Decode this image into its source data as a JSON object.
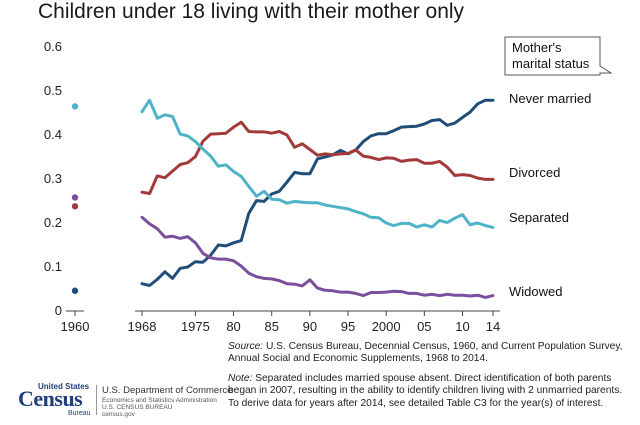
{
  "chart_data": {
    "type": "line",
    "title": "Children under 18 living with their mother only",
    "legend_title": "Mother's marital status",
    "ylim": [
      0,
      0.6
    ],
    "y_ticks": [
      "0",
      "0.1",
      "0.2",
      "0.3",
      "0.4",
      "0.5",
      "0.6"
    ],
    "x_tick_labels": [
      {
        "x": 1960,
        "label": "1960"
      },
      {
        "x": 1968,
        "label": "1968"
      },
      {
        "x": 1975,
        "label": "1975"
      },
      {
        "x": 1980,
        "label": "80"
      },
      {
        "x": 1985,
        "label": "85"
      },
      {
        "x": 1990,
        "label": "90"
      },
      {
        "x": 1995,
        "label": "95"
      },
      {
        "x": 2000,
        "label": "2000"
      },
      {
        "x": 2005,
        "label": "05"
      },
      {
        "x": 2010,
        "label": "10"
      },
      {
        "x": 2014,
        "label": "14"
      }
    ],
    "x_axis_gap": [
      1960,
      1968
    ],
    "grid": false,
    "legend_placement": "top-right",
    "series": [
      {
        "name": "Never married",
        "color": "#1f4e79",
        "point_1960": 0.046,
        "x": [
          1968,
          1969,
          1970,
          1971,
          1972,
          1973,
          1974,
          1975,
          1976,
          1977,
          1978,
          1979,
          1980,
          1981,
          1982,
          1983,
          1984,
          1985,
          1986,
          1987,
          1988,
          1989,
          1990,
          1991,
          1992,
          1993,
          1994,
          1995,
          1996,
          1997,
          1998,
          1999,
          2000,
          2001,
          2002,
          2003,
          2004,
          2005,
          2006,
          2007,
          2008,
          2009,
          2010,
          2011,
          2012,
          2013,
          2014
        ],
        "values": [
          0.062,
          0.058,
          0.072,
          0.089,
          0.074,
          0.097,
          0.1,
          0.112,
          0.111,
          0.127,
          0.15,
          0.148,
          0.155,
          0.16,
          0.222,
          0.251,
          0.249,
          0.266,
          0.272,
          0.293,
          0.315,
          0.312,
          0.312,
          0.346,
          0.35,
          0.355,
          0.365,
          0.357,
          0.366,
          0.385,
          0.398,
          0.403,
          0.403,
          0.41,
          0.418,
          0.419,
          0.42,
          0.425,
          0.433,
          0.435,
          0.422,
          0.427,
          0.44,
          0.452,
          0.471,
          0.479,
          0.479
        ]
      },
      {
        "name": "Divorced",
        "color": "#a33a3a",
        "point_1960": 0.238,
        "x": [
          1968,
          1969,
          1970,
          1971,
          1972,
          1973,
          1974,
          1975,
          1976,
          1977,
          1978,
          1979,
          1980,
          1981,
          1982,
          1983,
          1984,
          1985,
          1986,
          1987,
          1988,
          1989,
          1990,
          1991,
          1992,
          1993,
          1994,
          1995,
          1996,
          1997,
          1998,
          1999,
          2000,
          2001,
          2002,
          2003,
          2004,
          2005,
          2006,
          2007,
          2008,
          2009,
          2010,
          2011,
          2012,
          2013,
          2014
        ],
        "values": [
          0.27,
          0.267,
          0.307,
          0.303,
          0.318,
          0.333,
          0.337,
          0.351,
          0.386,
          0.402,
          0.403,
          0.404,
          0.418,
          0.429,
          0.408,
          0.407,
          0.407,
          0.404,
          0.408,
          0.4,
          0.372,
          0.38,
          0.367,
          0.354,
          0.357,
          0.355,
          0.357,
          0.358,
          0.366,
          0.352,
          0.349,
          0.344,
          0.348,
          0.347,
          0.34,
          0.343,
          0.344,
          0.336,
          0.336,
          0.34,
          0.327,
          0.308,
          0.31,
          0.308,
          0.302,
          0.299,
          0.299
        ]
      },
      {
        "name": "Separated",
        "color": "#4fb3c8",
        "point_1960": 0.465,
        "x": [
          1968,
          1969,
          1970,
          1971,
          1972,
          1973,
          1974,
          1975,
          1976,
          1977,
          1978,
          1979,
          1980,
          1981,
          1982,
          1983,
          1984,
          1985,
          1986,
          1987,
          1988,
          1989,
          1990,
          1991,
          1992,
          1993,
          1994,
          1995,
          1996,
          1997,
          1998,
          1999,
          2000,
          2001,
          2002,
          2003,
          2004,
          2005,
          2006,
          2007,
          2008,
          2009,
          2010,
          2011,
          2012,
          2013,
          2014
        ],
        "values": [
          0.453,
          0.479,
          0.438,
          0.446,
          0.442,
          0.402,
          0.398,
          0.385,
          0.368,
          0.352,
          0.329,
          0.332,
          0.317,
          0.306,
          0.283,
          0.261,
          0.272,
          0.254,
          0.253,
          0.245,
          0.249,
          0.247,
          0.246,
          0.246,
          0.241,
          0.238,
          0.235,
          0.232,
          0.226,
          0.221,
          0.213,
          0.212,
          0.2,
          0.194,
          0.199,
          0.199,
          0.191,
          0.196,
          0.191,
          0.206,
          0.201,
          0.211,
          0.219,
          0.196,
          0.2,
          0.194,
          0.19
        ]
      },
      {
        "name": "Widowed",
        "color": "#7b4f9d",
        "point_1960": 0.258,
        "x": [
          1968,
          1969,
          1970,
          1971,
          1972,
          1973,
          1974,
          1975,
          1976,
          1977,
          1978,
          1979,
          1980,
          1981,
          1982,
          1983,
          1984,
          1985,
          1986,
          1987,
          1988,
          1989,
          1990,
          1991,
          1992,
          1993,
          1994,
          1995,
          1996,
          1997,
          1998,
          1999,
          2000,
          2001,
          2002,
          2003,
          2004,
          2005,
          2006,
          2007,
          2008,
          2009,
          2010,
          2011,
          2012,
          2013,
          2014
        ],
        "values": [
          0.213,
          0.198,
          0.187,
          0.168,
          0.17,
          0.165,
          0.169,
          0.155,
          0.131,
          0.121,
          0.118,
          0.118,
          0.114,
          0.102,
          0.086,
          0.078,
          0.074,
          0.073,
          0.069,
          0.062,
          0.061,
          0.057,
          0.071,
          0.052,
          0.047,
          0.046,
          0.043,
          0.043,
          0.04,
          0.035,
          0.042,
          0.042,
          0.043,
          0.045,
          0.044,
          0.04,
          0.04,
          0.036,
          0.038,
          0.035,
          0.038,
          0.036,
          0.036,
          0.034,
          0.036,
          0.031,
          0.035
        ]
      }
    ]
  },
  "notes": {
    "source_lead": "Source:",
    "source_text": " U.S. Census Bureau, Decennial Census, 1960, and Current Population Survey, Annual Social and Economic Supplements, 1968 to 2014.",
    "note_lead": "Note:",
    "note_text": " Separated includes married spouse absent. Direct identification of both parents began in 2007, resulting in the ability to identify children living with 2 unmarried parents. To derive data for years after 2014, see detailed Table C3 for the year(s) of interest."
  },
  "logo": {
    "us": "United States",
    "wordmark": "Census",
    "bureau": "Bureau",
    "dept": "U.S. Department of Commerce",
    "esa": "Economics and Statistics Administration",
    "cb": "U.S. CENSUS BUREAU",
    "url": "census.gov",
    "color": "#1f3e7a"
  }
}
